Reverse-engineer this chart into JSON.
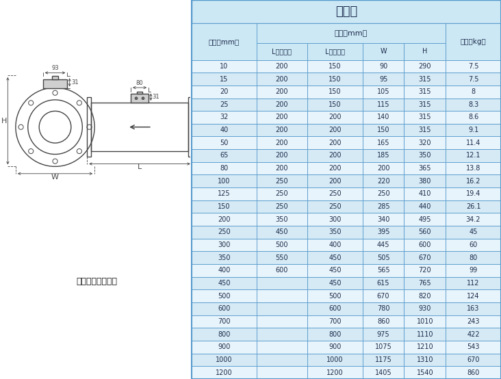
{
  "title": "分体式",
  "columns": [
    "口径（mm）",
    "L（四氟）",
    "L（橡胶）",
    "W",
    "H",
    "重量（kg）"
  ],
  "size_span_label": "尺寸（mm）",
  "rows": [
    [
      "10",
      "200",
      "150",
      "90",
      "290",
      "7.5"
    ],
    [
      "15",
      "200",
      "150",
      "95",
      "315",
      "7.5"
    ],
    [
      "20",
      "200",
      "150",
      "105",
      "315",
      "8"
    ],
    [
      "25",
      "200",
      "150",
      "115",
      "315",
      "8.3"
    ],
    [
      "32",
      "200",
      "200",
      "140",
      "315",
      "8.6"
    ],
    [
      "40",
      "200",
      "200",
      "150",
      "315",
      "9.1"
    ],
    [
      "50",
      "200",
      "200",
      "165",
      "320",
      "11.4"
    ],
    [
      "65",
      "200",
      "200",
      "185",
      "350",
      "12.1"
    ],
    [
      "80",
      "200",
      "200",
      "200",
      "365",
      "13.8"
    ],
    [
      "100",
      "250",
      "200",
      "220",
      "380",
      "16.2"
    ],
    [
      "125",
      "250",
      "250",
      "250",
      "410",
      "19.4"
    ],
    [
      "150",
      "250",
      "250",
      "285",
      "440",
      "26.1"
    ],
    [
      "200",
      "350",
      "300",
      "340",
      "495",
      "34.2"
    ],
    [
      "250",
      "450",
      "350",
      "395",
      "560",
      "45"
    ],
    [
      "300",
      "500",
      "400",
      "445",
      "600",
      "60"
    ],
    [
      "350",
      "550",
      "450",
      "505",
      "670",
      "80"
    ],
    [
      "400",
      "600",
      "450",
      "565",
      "720",
      "99"
    ],
    [
      "450",
      "",
      "450",
      "615",
      "765",
      "112"
    ],
    [
      "500",
      "",
      "500",
      "670",
      "820",
      "124"
    ],
    [
      "600",
      "",
      "600",
      "780",
      "930",
      "163"
    ],
    [
      "700",
      "",
      "700",
      "860",
      "1010",
      "243"
    ],
    [
      "800",
      "",
      "800",
      "975",
      "1110",
      "422"
    ],
    [
      "900",
      "",
      "900",
      "1075",
      "1210",
      "543"
    ],
    [
      "1000",
      "",
      "1000",
      "1175",
      "1310",
      "670"
    ],
    [
      "1200",
      "",
      "1200",
      "1405",
      "1540",
      "860"
    ]
  ],
  "bg_header": "#cde8f5",
  "row_bg_even": "#e8f4fb",
  "row_bg_odd": "#d5eaf5",
  "border_color": "#5599cc",
  "text_color": "#1a2a4a",
  "title_color": "#1a2a4a",
  "diagram_label": "法兰形（分体型）",
  "col_widths_rel": [
    1.4,
    1.1,
    1.2,
    0.9,
    0.9,
    1.2
  ]
}
